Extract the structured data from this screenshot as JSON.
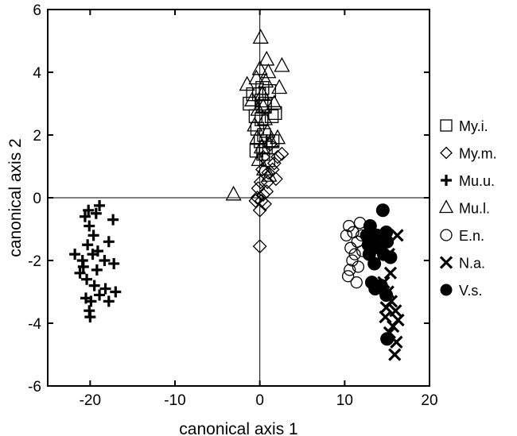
{
  "chart_data": {
    "type": "scatter",
    "title": "",
    "xlabel": "canonical axis 1",
    "ylabel": "canonical axis 2",
    "xlim": [
      -25,
      20
    ],
    "ylim": [
      -6,
      6
    ],
    "xticks": [
      -20,
      -10,
      0,
      10,
      20
    ],
    "yticks": [
      -6,
      -4,
      -2,
      0,
      2,
      4,
      6
    ],
    "reference_lines": {
      "x": 0,
      "y": 0
    },
    "grid": false,
    "legend_position": "right",
    "series": [
      {
        "name": "My.i.",
        "marker": "square",
        "points": [
          [
            -1.2,
            3.0
          ],
          [
            -0.8,
            3.3
          ],
          [
            -0.5,
            2.6
          ],
          [
            0.2,
            3.1
          ],
          [
            0.6,
            2.9
          ],
          [
            1.1,
            3.4
          ],
          [
            0.3,
            3.5
          ],
          [
            -0.3,
            2.2
          ],
          [
            0.5,
            2.0
          ],
          [
            1.4,
            2.6
          ],
          [
            0.1,
            1.8
          ],
          [
            0.7,
            1.6
          ],
          [
            -0.4,
            1.5
          ],
          [
            1.0,
            1.2
          ],
          [
            0.4,
            1.4
          ],
          [
            1.8,
            2.7
          ],
          [
            -0.1,
            3.3
          ],
          [
            0.6,
            3.0
          ],
          [
            1.5,
            1.8
          ],
          [
            0.2,
            2.5
          ]
        ]
      },
      {
        "name": "My.m.",
        "marker": "diamond",
        "points": [
          [
            1.2,
            1.7
          ],
          [
            2.1,
            1.3
          ],
          [
            2.6,
            1.4
          ],
          [
            1.5,
            0.9
          ],
          [
            0.9,
            0.5
          ],
          [
            0.4,
            0.1
          ],
          [
            -0.2,
            0.3
          ],
          [
            0.0,
            -0.4
          ],
          [
            0.6,
            -0.2
          ],
          [
            1.0,
            0.8
          ],
          [
            1.7,
            1.1
          ],
          [
            0.3,
            0.9
          ],
          [
            -0.3,
            0.0
          ],
          [
            0.1,
            0.5
          ],
          [
            0.0,
            -1.55
          ],
          [
            0.8,
            0.2
          ],
          [
            1.9,
            0.6
          ],
          [
            0.4,
            1.3
          ],
          [
            0.2,
            -0.1
          ],
          [
            -0.5,
            -0.1
          ]
        ]
      },
      {
        "name": "Mu.u.",
        "marker": "plus",
        "points": [
          [
            -20.0,
            -3.8
          ],
          [
            -20.1,
            -3.6
          ],
          [
            -19.9,
            -3.3
          ],
          [
            -18.9,
            -3.1
          ],
          [
            -18.2,
            -2.9
          ],
          [
            -17.0,
            -3.0
          ],
          [
            -17.8,
            -3.3
          ],
          [
            -19.5,
            -2.8
          ],
          [
            -20.5,
            -3.2
          ],
          [
            -21.2,
            -2.4
          ],
          [
            -20.8,
            -2.2
          ],
          [
            -19.2,
            -2.3
          ],
          [
            -18.3,
            -2.0
          ],
          [
            -17.2,
            -2.1
          ],
          [
            -20.9,
            -2.0
          ],
          [
            -21.8,
            -1.8
          ],
          [
            -20.3,
            -1.5
          ],
          [
            -19.1,
            -1.7
          ],
          [
            -17.8,
            -1.4
          ],
          [
            -19.6,
            -1.2
          ],
          [
            -20.1,
            -0.9
          ],
          [
            -20.6,
            -0.6
          ],
          [
            -19.3,
            -0.5
          ],
          [
            -18.9,
            -0.25
          ],
          [
            -17.3,
            -0.7
          ],
          [
            -20.2,
            -0.4
          ],
          [
            -19.7,
            -1.8
          ],
          [
            -20.4,
            -2.6
          ]
        ]
      },
      {
        "name": "Mu.l.",
        "marker": "triangle",
        "points": [
          [
            0.1,
            5.1
          ],
          [
            -1.5,
            3.6
          ],
          [
            0.8,
            4.4
          ],
          [
            1.0,
            4.0
          ],
          [
            0.0,
            4.1
          ],
          [
            -0.4,
            3.8
          ],
          [
            0.3,
            3.3
          ],
          [
            -0.2,
            2.8
          ],
          [
            0.6,
            2.5
          ],
          [
            0.9,
            2.1
          ],
          [
            1.3,
            1.8
          ],
          [
            -0.6,
            2.3
          ],
          [
            0.2,
            1.6
          ],
          [
            -0.1,
            1.2
          ],
          [
            0.5,
            0.9
          ],
          [
            1.1,
            0.7
          ],
          [
            -3.1,
            0.1
          ],
          [
            2.3,
            3.5
          ],
          [
            1.7,
            3.0
          ],
          [
            -0.9,
            3.1
          ],
          [
            0.4,
            2.9
          ],
          [
            2.1,
            1.9
          ],
          [
            2.6,
            4.2
          ],
          [
            -0.3,
            1.9
          ],
          [
            0.7,
            3.7
          ]
        ]
      },
      {
        "name": "E.n.",
        "marker": "circle-open",
        "points": [
          [
            10.5,
            -0.9
          ],
          [
            11.0,
            -1.1
          ],
          [
            10.2,
            -1.2
          ],
          [
            11.5,
            -1.4
          ],
          [
            12.0,
            -1.2
          ],
          [
            10.7,
            -1.6
          ],
          [
            11.2,
            -1.8
          ],
          [
            10.9,
            -2.0
          ],
          [
            11.6,
            -2.2
          ],
          [
            10.6,
            -2.3
          ],
          [
            10.4,
            -2.5
          ],
          [
            11.4,
            -2.7
          ],
          [
            12.1,
            -1.7
          ],
          [
            11.8,
            -0.8
          ]
        ]
      },
      {
        "name": "N.a.",
        "marker": "x",
        "points": [
          [
            16.2,
            -1.2
          ],
          [
            15.2,
            -1.8
          ],
          [
            14.6,
            -2.7
          ],
          [
            15.1,
            -3.0
          ],
          [
            15.5,
            -3.3
          ],
          [
            16.0,
            -3.6
          ],
          [
            15.7,
            -4.1
          ],
          [
            15.3,
            -4.3
          ],
          [
            16.1,
            -4.6
          ],
          [
            15.9,
            -5.0
          ],
          [
            14.9,
            -3.5
          ],
          [
            15.4,
            -2.4
          ],
          [
            16.3,
            -3.9
          ],
          [
            14.8,
            -3.8
          ]
        ]
      },
      {
        "name": "V.s.",
        "marker": "circle-filled",
        "points": [
          [
            14.5,
            -0.4
          ],
          [
            13.0,
            -0.9
          ],
          [
            12.6,
            -1.2
          ],
          [
            13.4,
            -1.3
          ],
          [
            14.1,
            -1.6
          ],
          [
            13.8,
            -1.2
          ],
          [
            15.0,
            -1.4
          ],
          [
            15.4,
            -1.9
          ],
          [
            12.9,
            -1.8
          ],
          [
            13.5,
            -2.1
          ],
          [
            14.6,
            -1.8
          ],
          [
            13.2,
            -2.7
          ],
          [
            13.6,
            -2.9
          ],
          [
            14.3,
            -2.8
          ],
          [
            15.0,
            -4.5
          ],
          [
            14.9,
            -3.1
          ],
          [
            12.8,
            -1.5
          ],
          [
            14.9,
            -1.1
          ]
        ]
      }
    ]
  }
}
